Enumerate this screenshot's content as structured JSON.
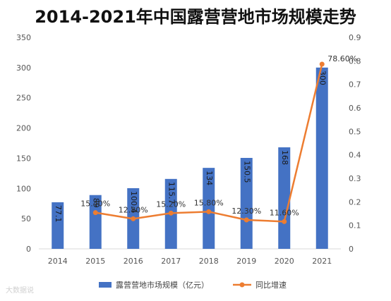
{
  "watermark": "大数据说",
  "chart_data": {
    "type": "bar",
    "title": "2014-2021年中国露营营地市场规模走势",
    "categories": [
      "2014",
      "2015",
      "2016",
      "2017",
      "2018",
      "2019",
      "2020",
      "2021"
    ],
    "series": [
      {
        "name": "露营营地市场规模（亿元）",
        "type": "bar",
        "axis": "left",
        "color": "#4472C4",
        "values": [
          77.1,
          89,
          100.4,
          115.7,
          134,
          150.5,
          168,
          300
        ],
        "labels": [
          "77.1",
          "89",
          "100.4",
          "115.7",
          "134",
          "150.5",
          "168",
          "300"
        ]
      },
      {
        "name": "同比增速",
        "type": "line",
        "axis": "right",
        "color": "#ED7D31",
        "values": [
          null,
          0.154,
          0.128,
          0.152,
          0.158,
          0.123,
          0.116,
          0.786
        ],
        "labels": [
          "",
          "15.40%",
          "12.80%",
          "15.20%",
          "15.80%",
          "12.30%",
          "11.60%",
          "78.60%"
        ]
      }
    ],
    "y_left": {
      "min": 0,
      "max": 350,
      "step": 50,
      "ticks": [
        "0",
        "50",
        "100",
        "150",
        "200",
        "250",
        "300",
        "350"
      ]
    },
    "y_right": {
      "min": 0,
      "max": 0.9,
      "step": 0.1,
      "ticks": [
        "0",
        "0.1",
        "0.2",
        "0.3",
        "0.4",
        "0.5",
        "0.6",
        "0.7",
        "0.8",
        "0.9"
      ]
    },
    "grid": false,
    "legend": "bottom"
  }
}
